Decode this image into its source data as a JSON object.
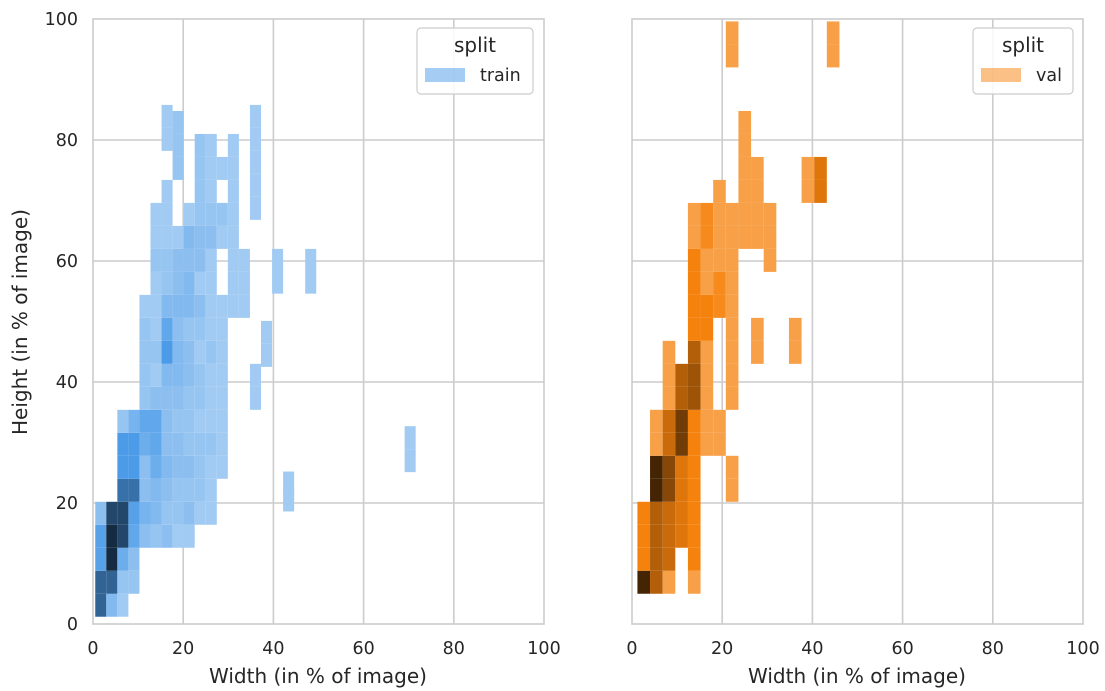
{
  "chart_data": [
    {
      "type": "heatmap",
      "xlabel": "Width (in % of image)",
      "ylabel": "Height (in % of image)",
      "xlim": [
        0,
        100
      ],
      "ylim": [
        0,
        100
      ],
      "xticks": [
        "0",
        "20",
        "40",
        "60",
        "80",
        "100"
      ],
      "yticks": [
        "0",
        "20",
        "40",
        "60",
        "80",
        "100"
      ],
      "grid": true,
      "legend": {
        "title": "split",
        "label": "train",
        "position": "top-right"
      },
      "color": "#4c9be8",
      "bin_width": 2.45,
      "bin_height": 3.8,
      "bins": [
        [
          0.5,
          1.2,
          0.8
        ],
        [
          0.5,
          5.0,
          0.8
        ],
        [
          0.5,
          8.8,
          0.55
        ],
        [
          0.5,
          12.6,
          0.55
        ],
        [
          0.5,
          16.4,
          0.3
        ],
        [
          2.95,
          1.2,
          0.35
        ],
        [
          2.95,
          5.0,
          0.8
        ],
        [
          2.95,
          8.8,
          1.0
        ],
        [
          2.95,
          12.6,
          1.0
        ],
        [
          2.95,
          16.4,
          0.9
        ],
        [
          5.4,
          1.2,
          0.2
        ],
        [
          5.4,
          5.0,
          0.25
        ],
        [
          5.4,
          8.8,
          0.45
        ],
        [
          5.4,
          12.6,
          0.9
        ],
        [
          5.4,
          16.4,
          0.9
        ],
        [
          5.4,
          20.2,
          0.75
        ],
        [
          5.4,
          24.0,
          0.6
        ],
        [
          5.4,
          27.8,
          0.6
        ],
        [
          5.4,
          31.6,
          0.25
        ],
        [
          7.85,
          5.0,
          0.25
        ],
        [
          7.85,
          8.8,
          0.3
        ],
        [
          7.85,
          12.6,
          0.5
        ],
        [
          7.85,
          16.4,
          0.55
        ],
        [
          7.85,
          20.2,
          0.75
        ],
        [
          7.85,
          24.0,
          0.6
        ],
        [
          7.85,
          27.8,
          0.6
        ],
        [
          7.85,
          31.6,
          0.4
        ],
        [
          10.3,
          12.6,
          0.3
        ],
        [
          10.3,
          16.4,
          0.4
        ],
        [
          10.3,
          20.2,
          0.3
        ],
        [
          10.3,
          24.0,
          0.3
        ],
        [
          10.3,
          27.8,
          0.45
        ],
        [
          10.3,
          31.6,
          0.5
        ],
        [
          10.3,
          35.4,
          0.25
        ],
        [
          10.3,
          39.2,
          0.25
        ],
        [
          10.3,
          43.0,
          0.25
        ],
        [
          10.3,
          46.8,
          0.25
        ],
        [
          10.3,
          50.6,
          0.2
        ],
        [
          12.75,
          12.6,
          0.25
        ],
        [
          12.75,
          16.4,
          0.35
        ],
        [
          12.75,
          20.2,
          0.35
        ],
        [
          12.75,
          24.0,
          0.45
        ],
        [
          12.75,
          27.8,
          0.5
        ],
        [
          12.75,
          31.6,
          0.5
        ],
        [
          12.75,
          35.4,
          0.3
        ],
        [
          12.75,
          39.2,
          0.2
        ],
        [
          12.75,
          43.0,
          0.25
        ],
        [
          12.75,
          46.8,
          0.2
        ],
        [
          12.75,
          50.6,
          0.2
        ],
        [
          12.75,
          54.4,
          0.2
        ],
        [
          12.75,
          58.2,
          0.25
        ],
        [
          12.75,
          62.0,
          0.2
        ],
        [
          12.75,
          65.8,
          0.2
        ],
        [
          15.2,
          12.6,
          0.3
        ],
        [
          15.2,
          16.4,
          0.25
        ],
        [
          15.2,
          20.2,
          0.3
        ],
        [
          15.2,
          24.0,
          0.35
        ],
        [
          15.2,
          27.8,
          0.3
        ],
        [
          15.2,
          31.6,
          0.3
        ],
        [
          15.2,
          35.4,
          0.3
        ],
        [
          15.2,
          39.2,
          0.35
        ],
        [
          15.2,
          43.0,
          0.6
        ],
        [
          15.2,
          46.8,
          0.5
        ],
        [
          15.2,
          50.6,
          0.35
        ],
        [
          15.2,
          54.4,
          0.25
        ],
        [
          15.2,
          58.2,
          0.25
        ],
        [
          15.2,
          62.0,
          0.2
        ],
        [
          15.2,
          65.8,
          0.2
        ],
        [
          15.2,
          69.6,
          0.2
        ],
        [
          17.65,
          12.6,
          0.2
        ],
        [
          17.65,
          16.4,
          0.25
        ],
        [
          17.65,
          20.2,
          0.25
        ],
        [
          17.65,
          24.0,
          0.3
        ],
        [
          17.65,
          27.8,
          0.3
        ],
        [
          17.65,
          31.6,
          0.25
        ],
        [
          17.65,
          35.4,
          0.3
        ],
        [
          17.65,
          39.2,
          0.35
        ],
        [
          17.65,
          43.0,
          0.35
        ],
        [
          17.65,
          46.8,
          0.3
        ],
        [
          17.65,
          50.6,
          0.35
        ],
        [
          17.65,
          54.4,
          0.3
        ],
        [
          17.65,
          58.2,
          0.3
        ],
        [
          17.65,
          62.0,
          0.2
        ],
        [
          17.65,
          73.4,
          0.25
        ],
        [
          17.65,
          77.2,
          0.25
        ],
        [
          17.65,
          81.0,
          0.25
        ],
        [
          20.1,
          12.6,
          0.2
        ],
        [
          20.1,
          16.4,
          0.3
        ],
        [
          20.1,
          20.2,
          0.25
        ],
        [
          20.1,
          24.0,
          0.3
        ],
        [
          20.1,
          27.8,
          0.25
        ],
        [
          20.1,
          31.6,
          0.25
        ],
        [
          20.1,
          35.4,
          0.25
        ],
        [
          20.1,
          39.2,
          0.3
        ],
        [
          20.1,
          43.0,
          0.3
        ],
        [
          20.1,
          46.8,
          0.25
        ],
        [
          20.1,
          50.6,
          0.35
        ],
        [
          20.1,
          54.4,
          0.35
        ],
        [
          20.1,
          58.2,
          0.3
        ],
        [
          20.1,
          62.0,
          0.35
        ],
        [
          20.1,
          65.8,
          0.2
        ],
        [
          22.55,
          16.4,
          0.2
        ],
        [
          22.55,
          20.2,
          0.25
        ],
        [
          22.55,
          24.0,
          0.25
        ],
        [
          22.55,
          27.8,
          0.25
        ],
        [
          22.55,
          31.6,
          0.2
        ],
        [
          22.55,
          35.4,
          0.25
        ],
        [
          22.55,
          39.2,
          0.25
        ],
        [
          22.55,
          43.0,
          0.2
        ],
        [
          22.55,
          46.8,
          0.25
        ],
        [
          22.55,
          50.6,
          0.3
        ],
        [
          22.55,
          54.4,
          0.2
        ],
        [
          22.55,
          58.2,
          0.3
        ],
        [
          22.55,
          62.0,
          0.3
        ],
        [
          22.55,
          65.8,
          0.25
        ],
        [
          22.55,
          69.6,
          0.25
        ],
        [
          22.55,
          73.4,
          0.25
        ],
        [
          22.55,
          77.2,
          0.25
        ],
        [
          25.0,
          16.4,
          0.2
        ],
        [
          25.0,
          20.2,
          0.2
        ],
        [
          25.0,
          24.0,
          0.2
        ],
        [
          25.0,
          27.8,
          0.25
        ],
        [
          25.0,
          31.6,
          0.2
        ],
        [
          25.0,
          35.4,
          0.2
        ],
        [
          25.0,
          39.2,
          0.2
        ],
        [
          25.0,
          43.0,
          0.25
        ],
        [
          25.0,
          46.8,
          0.2
        ],
        [
          25.0,
          50.6,
          0.2
        ],
        [
          25.0,
          54.4,
          0.2
        ],
        [
          25.0,
          58.2,
          0.2
        ],
        [
          25.0,
          62.0,
          0.3
        ],
        [
          25.0,
          65.8,
          0.25
        ],
        [
          25.0,
          69.6,
          0.2
        ],
        [
          25.0,
          73.4,
          0.2
        ],
        [
          25.0,
          77.2,
          0.2
        ],
        [
          27.45,
          24.0,
          0.2
        ],
        [
          27.45,
          27.8,
          0.2
        ],
        [
          27.45,
          31.6,
          0.2
        ],
        [
          27.45,
          35.4,
          0.2
        ],
        [
          27.45,
          39.2,
          0.2
        ],
        [
          27.45,
          43.0,
          0.2
        ],
        [
          27.45,
          46.8,
          0.2
        ],
        [
          27.45,
          50.6,
          0.2
        ],
        [
          27.45,
          62.0,
          0.2
        ],
        [
          27.45,
          65.8,
          0.25
        ],
        [
          27.45,
          73.4,
          0.2
        ],
        [
          29.9,
          50.6,
          0.2
        ],
        [
          29.9,
          54.4,
          0.2
        ],
        [
          29.9,
          58.2,
          0.2
        ],
        [
          29.9,
          62.0,
          0.2
        ],
        [
          29.9,
          65.8,
          0.2
        ],
        [
          29.9,
          69.6,
          0.2
        ],
        [
          29.9,
          73.4,
          0.2
        ],
        [
          29.9,
          77.2,
          0.2
        ],
        [
          32.35,
          50.6,
          0.2
        ],
        [
          32.35,
          54.4,
          0.2
        ],
        [
          32.35,
          58.2,
          0.2
        ],
        [
          34.8,
          35.4,
          0.2
        ],
        [
          34.8,
          39.2,
          0.2
        ],
        [
          34.8,
          66.8,
          0.2
        ],
        [
          34.8,
          70.6,
          0.2
        ],
        [
          34.8,
          74.4,
          0.2
        ],
        [
          34.8,
          78.2,
          0.2
        ],
        [
          34.8,
          82.0,
          0.2
        ],
        [
          37.25,
          42.5,
          0.2
        ],
        [
          37.25,
          46.3,
          0.2
        ],
        [
          39.7,
          54.6,
          0.2
        ],
        [
          39.7,
          58.2,
          0.2
        ],
        [
          42.15,
          18.6,
          0.2
        ],
        [
          42.15,
          21.4,
          0.2
        ],
        [
          47.05,
          54.6,
          0.2
        ],
        [
          47.05,
          58.2,
          0.2
        ],
        [
          69.1,
          25.1,
          0.2
        ],
        [
          69.1,
          28.9,
          0.2
        ],
        [
          15.2,
          78.2,
          0.2
        ],
        [
          15.2,
          82.0,
          0.2
        ]
      ]
    },
    {
      "type": "heatmap",
      "xlabel": "Width (in % of image)",
      "xlim": [
        0,
        100
      ],
      "ylim": [
        0,
        100
      ],
      "xticks": [
        "0",
        "20",
        "40",
        "60",
        "80",
        "100"
      ],
      "grid": true,
      "legend": {
        "title": "split",
        "label": "val",
        "position": "top-right"
      },
      "color": "#f5820d",
      "bin_width": 2.8,
      "bin_height": 3.8,
      "bins": [
        [
          1.2,
          5.0,
          1.0
        ],
        [
          1.2,
          8.8,
          0.6
        ],
        [
          1.2,
          12.6,
          0.6
        ],
        [
          1.2,
          16.4,
          0.6
        ],
        [
          4.0,
          5.0,
          0.75
        ],
        [
          4.0,
          8.8,
          0.75
        ],
        [
          4.0,
          12.6,
          0.75
        ],
        [
          4.0,
          16.4,
          0.75
        ],
        [
          4.0,
          20.2,
          1.0
        ],
        [
          4.0,
          24.0,
          1.0
        ],
        [
          4.0,
          27.8,
          0.4
        ],
        [
          4.0,
          31.6,
          0.4
        ],
        [
          6.8,
          5.0,
          0.4
        ],
        [
          6.8,
          8.8,
          0.7
        ],
        [
          6.8,
          12.6,
          0.7
        ],
        [
          6.8,
          16.4,
          0.7
        ],
        [
          6.8,
          20.2,
          0.85
        ],
        [
          6.8,
          24.0,
          0.85
        ],
        [
          6.8,
          27.8,
          0.7
        ],
        [
          6.8,
          31.6,
          0.7
        ],
        [
          6.8,
          35.4,
          0.4
        ],
        [
          6.8,
          39.2,
          0.4
        ],
        [
          6.8,
          43.0,
          0.4
        ],
        [
          9.6,
          12.6,
          0.65
        ],
        [
          9.6,
          16.4,
          0.65
        ],
        [
          9.6,
          20.2,
          0.65
        ],
        [
          9.6,
          24.0,
          0.65
        ],
        [
          9.6,
          27.8,
          0.9
        ],
        [
          9.6,
          31.6,
          0.9
        ],
        [
          9.6,
          35.4,
          0.75
        ],
        [
          9.6,
          39.2,
          0.75
        ],
        [
          12.4,
          5.0,
          0.4
        ],
        [
          12.4,
          8.8,
          0.6
        ],
        [
          12.4,
          12.6,
          0.6
        ],
        [
          12.4,
          16.4,
          0.6
        ],
        [
          12.4,
          20.2,
          0.6
        ],
        [
          12.4,
          24.0,
          0.6
        ],
        [
          12.4,
          27.8,
          0.6
        ],
        [
          12.4,
          31.6,
          0.6
        ],
        [
          12.4,
          35.4,
          0.8
        ],
        [
          12.4,
          39.2,
          0.8
        ],
        [
          12.4,
          43.0,
          0.75
        ],
        [
          12.4,
          46.8,
          0.6
        ],
        [
          12.4,
          50.6,
          0.6
        ],
        [
          12.4,
          54.4,
          0.6
        ],
        [
          12.4,
          58.2,
          0.6
        ],
        [
          12.4,
          62.0,
          0.4
        ],
        [
          12.4,
          65.8,
          0.4
        ],
        [
          15.2,
          27.8,
          0.4
        ],
        [
          15.2,
          31.6,
          0.4
        ],
        [
          15.2,
          35.4,
          0.4
        ],
        [
          15.2,
          39.2,
          0.4
        ],
        [
          15.2,
          43.0,
          0.4
        ],
        [
          15.2,
          46.8,
          0.6
        ],
        [
          15.2,
          50.6,
          0.6
        ],
        [
          15.2,
          54.4,
          0.4
        ],
        [
          15.2,
          58.2,
          0.4
        ],
        [
          15.2,
          62.0,
          0.55
        ],
        [
          15.2,
          65.8,
          0.55
        ],
        [
          18.0,
          27.8,
          0.4
        ],
        [
          18.0,
          31.6,
          0.4
        ],
        [
          18.0,
          50.6,
          0.55
        ],
        [
          18.0,
          54.4,
          0.55
        ],
        [
          18.0,
          58.2,
          0.4
        ],
        [
          18.0,
          62.0,
          0.4
        ],
        [
          18.0,
          65.8,
          0.4
        ],
        [
          18.0,
          69.6,
          0.4
        ],
        [
          20.8,
          20.2,
          0.4
        ],
        [
          20.8,
          24.0,
          0.4
        ],
        [
          20.8,
          35.4,
          0.4
        ],
        [
          20.8,
          39.2,
          0.4
        ],
        [
          20.8,
          43.0,
          0.4
        ],
        [
          20.8,
          46.8,
          0.4
        ],
        [
          20.8,
          50.6,
          0.4
        ],
        [
          20.8,
          54.4,
          0.4
        ],
        [
          20.8,
          58.2,
          0.4
        ],
        [
          20.8,
          62.0,
          0.4
        ],
        [
          20.8,
          65.8,
          0.4
        ],
        [
          20.8,
          92.0,
          0.4
        ],
        [
          20.8,
          95.8,
          0.4
        ],
        [
          23.6,
          62.0,
          0.4
        ],
        [
          23.6,
          65.8,
          0.4
        ],
        [
          23.6,
          69.6,
          0.4
        ],
        [
          23.6,
          73.4,
          0.4
        ],
        [
          23.6,
          77.2,
          0.4
        ],
        [
          23.6,
          81.0,
          0.4
        ],
        [
          26.4,
          43.0,
          0.4
        ],
        [
          26.4,
          46.8,
          0.4
        ],
        [
          26.4,
          62.0,
          0.4
        ],
        [
          26.4,
          65.8,
          0.4
        ],
        [
          26.4,
          69.6,
          0.4
        ],
        [
          26.4,
          73.4,
          0.4
        ],
        [
          29.2,
          58.2,
          0.4
        ],
        [
          29.2,
          62.0,
          0.4
        ],
        [
          29.2,
          65.8,
          0.4
        ],
        [
          34.8,
          43.0,
          0.4
        ],
        [
          34.8,
          46.8,
          0.4
        ],
        [
          37.6,
          69.6,
          0.4
        ],
        [
          37.6,
          73.4,
          0.4
        ],
        [
          40.4,
          69.6,
          0.65
        ],
        [
          40.4,
          73.4,
          0.65
        ],
        [
          43.2,
          92.0,
          0.4
        ],
        [
          43.2,
          95.8,
          0.4
        ]
      ]
    }
  ]
}
